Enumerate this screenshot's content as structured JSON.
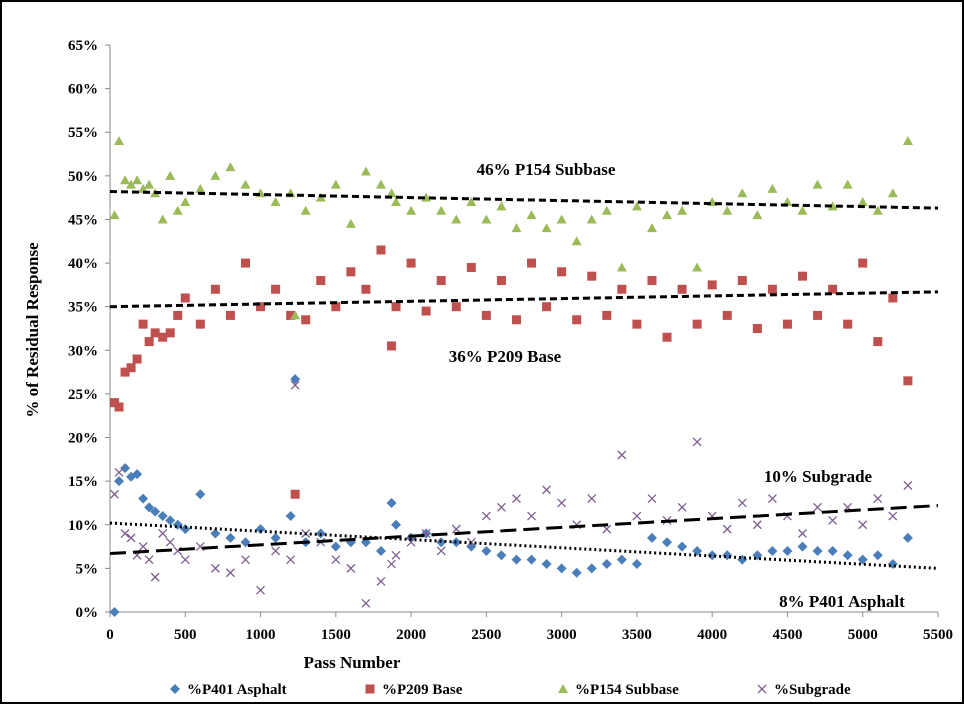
{
  "chart_data": {
    "type": "scatter",
    "x_label": "Pass Number",
    "y_label": "% of Residual Response",
    "xlim": [
      0,
      5500
    ],
    "xticks": [
      0,
      500,
      1000,
      1500,
      2000,
      2500,
      3000,
      3500,
      4000,
      4500,
      5000,
      5500
    ],
    "ylim": [
      0,
      65
    ],
    "yticks": [
      {
        "value": 0,
        "label": "0%"
      },
      {
        "value": 5,
        "label": "5%"
      },
      {
        "value": 10,
        "label": "10%"
      },
      {
        "value": 15,
        "label": "15%"
      },
      {
        "value": 20,
        "label": "20%"
      },
      {
        "value": 25,
        "label": "25%"
      },
      {
        "value": 30,
        "label": "30%"
      },
      {
        "value": 35,
        "label": "35%"
      },
      {
        "value": 40,
        "label": "40%"
      },
      {
        "value": 45,
        "label": "45%"
      },
      {
        "value": 50,
        "label": "50%"
      },
      {
        "value": 55,
        "label": "55%"
      },
      {
        "value": 60,
        "label": "60%"
      },
      {
        "value": 65,
        "label": "65%"
      }
    ],
    "grid": false,
    "legend": "bottom",
    "x": [
      30,
      60,
      100,
      140,
      180,
      220,
      260,
      300,
      350,
      400,
      450,
      500,
      600,
      700,
      800,
      900,
      1000,
      1100,
      1200,
      1230,
      1300,
      1400,
      1500,
      1600,
      1700,
      1800,
      1870,
      1900,
      2000,
      2100,
      2200,
      2300,
      2400,
      2500,
      2600,
      2700,
      2800,
      2900,
      3000,
      3100,
      3200,
      3300,
      3400,
      3500,
      3600,
      3700,
      3800,
      3900,
      4000,
      4100,
      4200,
      4300,
      4400,
      4500,
      4600,
      4700,
      4800,
      4900,
      5000,
      5100,
      5200,
      5300
    ],
    "series": [
      {
        "name": "%P401 Asphalt",
        "color": "#4a7ebb",
        "marker": "diamond",
        "values": [
          0,
          15,
          16.5,
          15.5,
          15.8,
          13,
          12,
          11.5,
          11,
          10.5,
          10,
          9.5,
          13.5,
          9,
          8.5,
          8,
          9.5,
          8.5,
          11,
          26.7,
          8,
          9,
          7.5,
          8,
          8,
          7,
          12.5,
          10,
          8.5,
          9,
          8,
          8,
          7.5,
          7,
          6.5,
          6,
          6,
          5.5,
          5,
          4.5,
          5,
          5.5,
          6,
          5.5,
          8.5,
          8,
          7.5,
          7,
          6.5,
          6.5,
          6,
          6.5,
          7,
          7,
          7.5,
          7,
          7,
          6.5,
          6,
          6.5,
          5.5,
          8.5
        ]
      },
      {
        "name": "%P209 Base",
        "color": "#c0504d",
        "marker": "square",
        "values": [
          24,
          23.5,
          27.5,
          28,
          29,
          33,
          31,
          32,
          31.5,
          32,
          34,
          36,
          33,
          37,
          34,
          40,
          35,
          37,
          34,
          13.5,
          33.5,
          38,
          35,
          39,
          37,
          41.5,
          30.5,
          35,
          40,
          34.5,
          38,
          35,
          39.5,
          34,
          38,
          33.5,
          40,
          35,
          39,
          33.5,
          38.5,
          34,
          37,
          33,
          38,
          31.5,
          37,
          33,
          37.5,
          34,
          38,
          32.5,
          37,
          33,
          38.5,
          34,
          37,
          33,
          40,
          31,
          36,
          26.5
        ]
      },
      {
        "name": "%P154 Subbase",
        "color": "#9bbb59",
        "marker": "triangle",
        "values": [
          45.5,
          54,
          49.5,
          49,
          49.5,
          48.5,
          49,
          48,
          45,
          50,
          46,
          47,
          48.5,
          50,
          51,
          49,
          48,
          47,
          48,
          34,
          46,
          47.5,
          49,
          44.5,
          50.5,
          49,
          48,
          47,
          46,
          47.5,
          46,
          45,
          47,
          45,
          46.5,
          44,
          45.5,
          44,
          45,
          42.5,
          45,
          46,
          39.5,
          46.5,
          44,
          45.5,
          46,
          39.5,
          47,
          46,
          48,
          45.5,
          48.5,
          47,
          46,
          49,
          46.5,
          49,
          47,
          46,
          48,
          54
        ]
      },
      {
        "name": "%Subgrade",
        "color": "#7d5f8f",
        "marker": "x",
        "values": [
          13.5,
          16,
          9,
          8.5,
          6.5,
          7.5,
          6,
          4,
          9,
          8,
          7,
          6,
          7.5,
          5,
          4.5,
          6,
          2.5,
          7,
          6,
          26,
          9,
          8,
          6,
          5,
          1,
          3.5,
          5.5,
          6.5,
          8,
          9,
          7,
          9.5,
          8,
          11,
          12,
          13,
          11,
          14,
          12.5,
          10,
          13,
          9.5,
          18,
          11,
          13,
          10.5,
          12,
          19.5,
          11,
          9.5,
          12.5,
          10,
          13,
          11,
          9,
          12,
          10.5,
          12,
          10,
          13,
          11,
          14.5
        ]
      }
    ],
    "trendlines": [
      {
        "x": [
          0,
          5500
        ],
        "values": [
          10.2,
          5
        ],
        "style": "dotted"
      },
      {
        "x": [
          0,
          5500
        ],
        "values": [
          35,
          36.7
        ],
        "style": "dashed"
      },
      {
        "x": [
          0,
          5500
        ],
        "values": [
          48.2,
          46.3
        ],
        "style": "dashed"
      },
      {
        "x": [
          0,
          5500
        ],
        "values": [
          6.7,
          12.2
        ],
        "style": "long-dash"
      }
    ],
    "annotations": [
      "46% P154 Subbase",
      "36% P209 Base",
      "10% Subgrade",
      "8% P401 Asphalt"
    ]
  }
}
